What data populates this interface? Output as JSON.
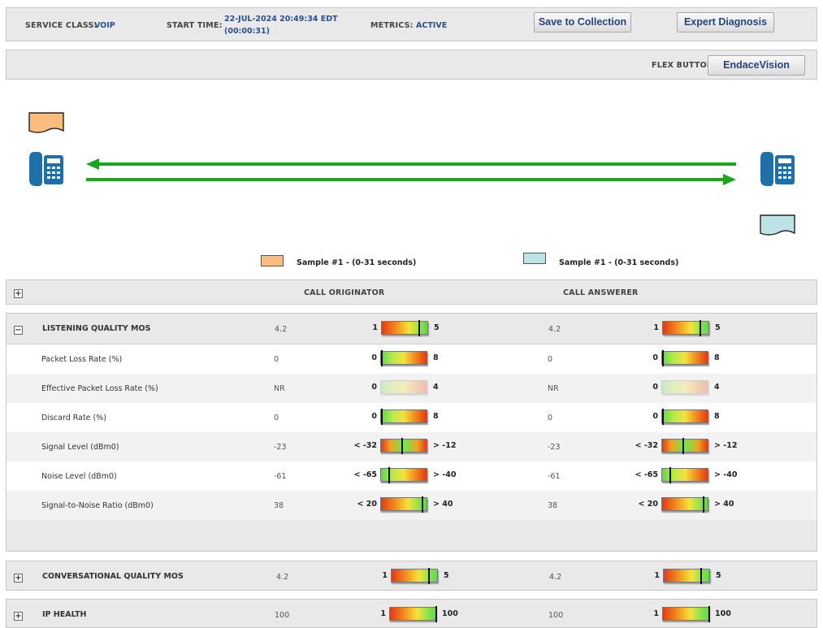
{
  "header": {
    "service_class_label": "SERVICE CLASS:",
    "service_class_value": "VOIP",
    "start_time_label": "START TIME:",
    "start_time_value": "22-JUL-2024 20:49:34 EDT",
    "start_time_elapsed": "(00:00:31)",
    "metrics_label": "METRICS:",
    "metrics_value": "ACTIVE",
    "save_button": "Save to Collection",
    "expert_button": "Expert Diagnosis"
  },
  "flex": {
    "label": "FLEX BUTTON",
    "button": "EndaceVision"
  },
  "legend": {
    "originator_sample": "Sample #1 - (0-31 seconds)",
    "answerer_sample": "Sample #1 - (0-31 seconds)"
  },
  "colors": {
    "originator": "#fbbd7e",
    "answerer": "#bde3e6",
    "arrow": "#1aa81a",
    "phone": "#1f6fa8",
    "value_text": "#2b4f93"
  },
  "icons": [
    "document-icon",
    "phone-icon",
    "plus-icon",
    "minus-icon"
  ],
  "columns": {
    "originator": "CALL ORIGINATOR",
    "answerer": "CALL ANSWERER"
  },
  "sections": {
    "lq": {
      "title": "LISTENING QUALITY MOS",
      "expanded": true,
      "orig": {
        "value": "4.2",
        "min": "1",
        "max": "5",
        "level": 0.8,
        "scale": "good-high"
      },
      "ans": {
        "value": "4.2",
        "min": "1",
        "max": "5",
        "level": 0.8,
        "scale": "good-high"
      }
    },
    "cq": {
      "title": "CONVERSATIONAL QUALITY MOS",
      "expanded": false,
      "orig": {
        "value": "4.2",
        "min": "1",
        "max": "5",
        "level": 0.8,
        "scale": "good-high"
      },
      "ans": {
        "value": "4.2",
        "min": "1",
        "max": "5",
        "level": 0.8,
        "scale": "good-high"
      }
    },
    "ip": {
      "title": "IP HEALTH",
      "expanded": false,
      "orig": {
        "value": "100",
        "min": "1",
        "max": "100",
        "level": 1.0,
        "scale": "good-high"
      },
      "ans": {
        "value": "100",
        "min": "1",
        "max": "100",
        "level": 1.0,
        "scale": "good-high"
      }
    }
  },
  "metrics": [
    {
      "label": "Packet Loss Rate (%)",
      "orig": {
        "value": "0",
        "min": "0",
        "max": "8",
        "level": 0.0,
        "scale": "good-low"
      },
      "ans": {
        "value": "0",
        "min": "0",
        "max": "8",
        "level": 0.0,
        "scale": "good-low"
      }
    },
    {
      "label": "Effective Packet Loss Rate (%)",
      "orig": {
        "value": "NR",
        "min": "0",
        "max": "4",
        "level": null,
        "scale": "good-low",
        "disabled": true
      },
      "ans": {
        "value": "NR",
        "min": "0",
        "max": "4",
        "level": null,
        "scale": "good-low",
        "disabled": true
      }
    },
    {
      "label": "Discard Rate (%)",
      "orig": {
        "value": "0",
        "min": "0",
        "max": "8",
        "level": 0.0,
        "scale": "good-low"
      },
      "ans": {
        "value": "0",
        "min": "0",
        "max": "8",
        "level": 0.0,
        "scale": "good-low"
      }
    },
    {
      "label": "Signal Level (dBm0)",
      "orig": {
        "value": "-23",
        "min": "< -32",
        "max": "> -12",
        "level": 0.45,
        "scale": "good-mid"
      },
      "ans": {
        "value": "-23",
        "min": "< -32",
        "max": "> -12",
        "level": 0.45,
        "scale": "good-mid"
      }
    },
    {
      "label": "Noise Level (dBm0)",
      "orig": {
        "value": "-61",
        "min": "< -65",
        "max": "> -40",
        "level": 0.16,
        "scale": "good-low"
      },
      "ans": {
        "value": "-61",
        "min": "< -65",
        "max": "> -40",
        "level": 0.16,
        "scale": "good-low"
      }
    },
    {
      "label": "Signal-to-Noise Ratio (dBm0)",
      "orig": {
        "value": "38",
        "min": "< 20",
        "max": "> 40",
        "level": 0.9,
        "scale": "good-high"
      },
      "ans": {
        "value": "38",
        "min": "< 20",
        "max": "> 40",
        "level": 0.9,
        "scale": "good-high"
      }
    }
  ]
}
